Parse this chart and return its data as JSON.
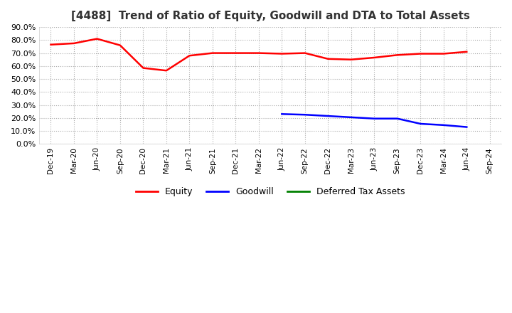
{
  "title": "[4488]  Trend of Ratio of Equity, Goodwill and DTA to Total Assets",
  "title_fontsize": 11,
  "background_color": "#ffffff",
  "plot_bg_color": "#ffffff",
  "x_labels": [
    "Dec-19",
    "Mar-20",
    "Jun-20",
    "Sep-20",
    "Dec-20",
    "Mar-21",
    "Jun-21",
    "Sep-21",
    "Dec-21",
    "Mar-22",
    "Jun-22",
    "Sep-22",
    "Dec-22",
    "Mar-23",
    "Jun-23",
    "Sep-23",
    "Dec-23",
    "Mar-24",
    "Jun-24",
    "Sep-24"
  ],
  "equity": [
    76.5,
    77.5,
    81.0,
    76.0,
    58.5,
    56.5,
    68.0,
    70.0,
    70.0,
    70.0,
    69.5,
    70.0,
    65.5,
    65.0,
    66.5,
    68.5,
    69.5,
    69.5,
    71.0,
    null
  ],
  "goodwill": [
    null,
    null,
    null,
    null,
    null,
    null,
    null,
    null,
    null,
    null,
    23.0,
    22.5,
    21.5,
    20.5,
    19.5,
    19.5,
    15.5,
    14.5,
    13.0,
    null
  ],
  "dta": [
    null,
    null,
    null,
    null,
    null,
    null,
    null,
    null,
    null,
    null,
    null,
    null,
    null,
    null,
    null,
    null,
    null,
    null,
    null,
    null
  ],
  "ylim": [
    0,
    90
  ],
  "yticks": [
    0,
    10,
    20,
    30,
    40,
    50,
    60,
    70,
    80,
    90
  ],
  "equity_color": "#ff0000",
  "goodwill_color": "#0000ff",
  "dta_color": "#008000",
  "line_width": 1.8
}
